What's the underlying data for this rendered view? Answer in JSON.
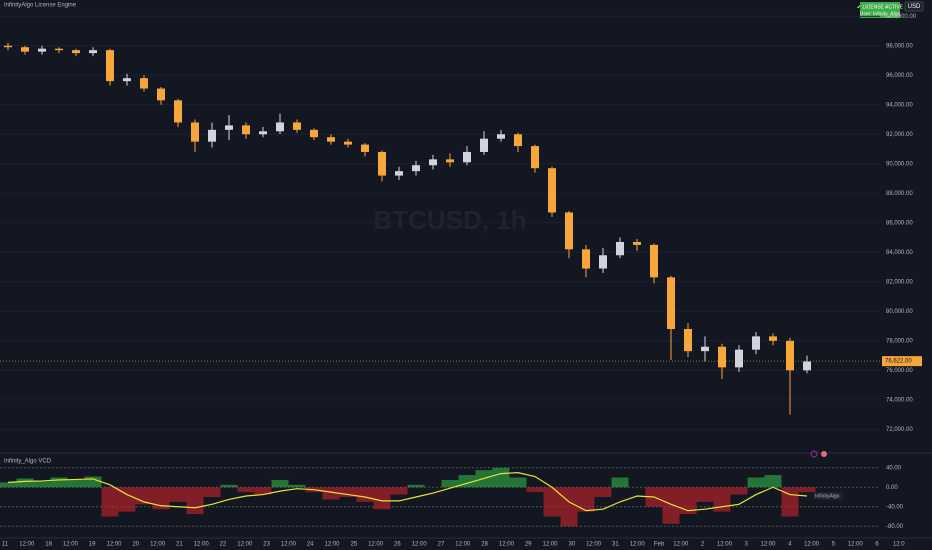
{
  "header": {
    "engine": "InfinityAlgo License Engine",
    "currency": "USD",
    "license": "✔ LICENSE ACTIVE",
    "user": "User: Infinity_Algo"
  },
  "chart_data": [
    {
      "type": "candlestick",
      "watermark": "BTCUSD, 1h",
      "open": [
        98000,
        97900,
        97600,
        97800,
        97700,
        97500,
        97700,
        95600,
        95800,
        95100,
        94300,
        92800,
        91500,
        92300,
        92600,
        92000,
        92200,
        92800,
        92300,
        91800,
        91500,
        91300,
        90800,
        89200,
        89500,
        89900,
        90300,
        90100,
        90800,
        91700,
        92000,
        91200,
        89700,
        86700,
        84200,
        82900,
        83800,
        84700,
        84500,
        82300,
        78800,
        77300,
        77600,
        76200,
        77400,
        78300,
        78000,
        76000
      ],
      "high": [
        98200,
        98000,
        98000,
        97900,
        97800,
        97900,
        97800,
        96100,
        96000,
        95200,
        94400,
        93000,
        92800,
        93300,
        92800,
        92500,
        93400,
        93000,
        92400,
        92000,
        91700,
        91400,
        90900,
        89800,
        90200,
        90600,
        90700,
        91200,
        92200,
        92300,
        92100,
        91300,
        89800,
        86800,
        84500,
        84300,
        85000,
        84900,
        84600,
        82400,
        79200,
        78300,
        77800,
        77700,
        78600,
        78500,
        78200,
        77000
      ],
      "low": [
        97700,
        97400,
        97400,
        97500,
        97300,
        97300,
        95300,
        95300,
        94900,
        94000,
        92500,
        90800,
        91100,
        91600,
        91700,
        91800,
        92000,
        92100,
        91600,
        91300,
        91100,
        90500,
        88800,
        88900,
        89200,
        89600,
        89800,
        89900,
        90600,
        91500,
        90800,
        89400,
        86400,
        83600,
        82300,
        82600,
        83600,
        84100,
        81900,
        76700,
        76900,
        76600,
        75400,
        75900,
        77100,
        77700,
        73000,
        75800
      ],
      "close": [
        97900,
        97600,
        97800,
        97700,
        97500,
        97700,
        95600,
        95800,
        95100,
        94300,
        92800,
        91500,
        92300,
        92600,
        92000,
        92200,
        92800,
        92300,
        91800,
        91500,
        91300,
        90800,
        89200,
        89500,
        89900,
        90300,
        90100,
        90800,
        91700,
        92000,
        91200,
        89700,
        86700,
        84200,
        82900,
        83800,
        84700,
        84500,
        82300,
        78800,
        77300,
        77600,
        76200,
        77400,
        78300,
        78000,
        76000,
        76600
      ],
      "up_color": "#d1d4dc",
      "down_color": "#f7a63b",
      "ylim": [
        70600,
        101100
      ],
      "yticks": [
        {
          "value": 72000,
          "label": "72,000.00"
        },
        {
          "value": 74000,
          "label": "74,000.00"
        },
        {
          "value": 76000,
          "label": "76,000.00"
        },
        {
          "value": 78000,
          "label": "78,000.00"
        },
        {
          "value": 80000,
          "label": "80,000.00"
        },
        {
          "value": 82000,
          "label": "82,000.00"
        },
        {
          "value": 84000,
          "label": "84,000.00"
        },
        {
          "value": 86000,
          "label": "86,000.00"
        },
        {
          "value": 88000,
          "label": "88,000.00"
        },
        {
          "value": 90000,
          "label": "90,000.00"
        },
        {
          "value": 92000,
          "label": "92,000.00"
        },
        {
          "value": 94000,
          "label": "94,000.00"
        },
        {
          "value": 96000,
          "label": "96,000.00"
        },
        {
          "value": 98000,
          "label": "98,000.00"
        },
        {
          "value": 100000,
          "label": "100,000.00"
        }
      ],
      "last_price": {
        "value": 76622,
        "label": "76,622.00"
      }
    },
    {
      "type": "combo",
      "title": "Infinity_Algo VCD",
      "histogram": {
        "values": [
          10,
          18,
          12,
          20,
          15,
          22,
          -60,
          -50,
          -35,
          -45,
          -30,
          -55,
          -20,
          5,
          -10,
          -15,
          15,
          5,
          -10,
          -25,
          -20,
          -30,
          -45,
          -15,
          5,
          0,
          15,
          25,
          35,
          40,
          20,
          -10,
          -60,
          -80,
          -50,
          -20,
          20,
          0,
          -40,
          -75,
          -55,
          -30,
          -50,
          -15,
          20,
          25,
          -60,
          -10
        ],
        "up_color": "#2e9e3e",
        "down_color": "#b2222a"
      },
      "series": [
        {
          "name": "InfinityAlgo",
          "color": "#e8e337",
          "values": [
            10,
            12,
            13,
            15,
            16,
            17,
            5,
            -15,
            -30,
            -38,
            -40,
            -42,
            -35,
            -25,
            -18,
            -15,
            -8,
            -3,
            -5,
            -10,
            -15,
            -20,
            -28,
            -28,
            -20,
            -12,
            -2,
            8,
            18,
            28,
            30,
            22,
            0,
            -30,
            -48,
            -45,
            -30,
            -18,
            -20,
            -35,
            -48,
            -45,
            -40,
            -35,
            -15,
            0,
            -15,
            -18
          ]
        }
      ],
      "ylim": [
        -100,
        60
      ],
      "yticks": [
        {
          "value": 40,
          "label": "40.00"
        },
        {
          "value": 0,
          "label": "0.00"
        },
        {
          "value": -40,
          "label": "-40.00"
        },
        {
          "value": -80,
          "label": "-80.00"
        }
      ],
      "x_labels": [
        "11",
        "12:00",
        "18",
        "12:00",
        "19",
        "12:00",
        "20",
        "12:00",
        "21",
        "12:00",
        "22",
        "12:00",
        "23",
        "12:00",
        "24",
        "12:00",
        "25",
        "12:00",
        "26",
        "12:00",
        "27",
        "12:00",
        "28",
        "12:00",
        "29",
        "12:00",
        "30",
        "12:00",
        "31",
        "12:00",
        "Feb",
        "12:00",
        "2",
        "12:00",
        "3",
        "12:00",
        "4",
        "12:00",
        "5",
        "12:00",
        "6",
        "12:0"
      ]
    }
  ]
}
